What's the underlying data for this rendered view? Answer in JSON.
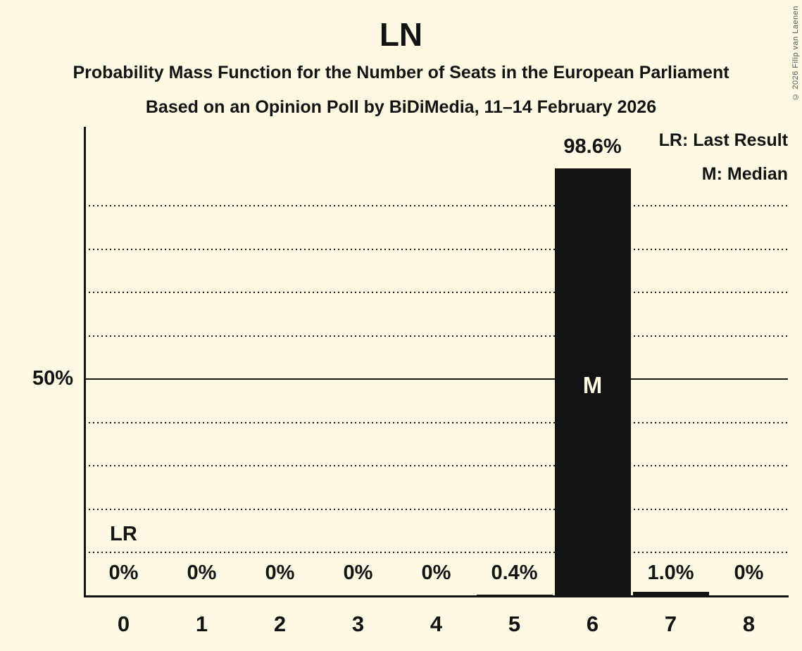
{
  "page": {
    "background_color": "#FDF9E3",
    "text_color": "#131313",
    "copyright": "© 2026 Filip van Laenen"
  },
  "header": {
    "title": "LN",
    "subtitle": "Probability Mass Function for the Number of Seats in the European Parliament",
    "poll_line": "Based on an Opinion Poll by BiDiMedia, 11–14 February 2026"
  },
  "legend": {
    "last_result": "LR: Last Result",
    "median": "M: Median"
  },
  "chart_data": {
    "type": "bar",
    "title": "LN",
    "categories": [
      "0",
      "1",
      "2",
      "3",
      "4",
      "5",
      "6",
      "7",
      "8"
    ],
    "values": [
      0,
      0,
      0,
      0,
      0,
      0.4,
      98.6,
      1.0,
      0
    ],
    "value_labels": [
      "0%",
      "0%",
      "0%",
      "0%",
      "0%",
      "0.4%",
      "98.6%",
      "1.0%",
      "0%"
    ],
    "xlabel": "",
    "ylabel": "",
    "ylim": [
      0,
      108
    ],
    "y_tick_label": "50%",
    "y_tick_value": 50,
    "gridlines_pct": [
      10,
      20,
      30,
      40,
      60,
      70,
      80,
      90
    ],
    "solid_gridline_pct": 50,
    "grid_style": "dotted",
    "legend_position": "top-right",
    "bar_color": "#131313",
    "median_category": "6",
    "median_marker": "M",
    "last_result_category": "0",
    "last_result_marker": "LR"
  }
}
